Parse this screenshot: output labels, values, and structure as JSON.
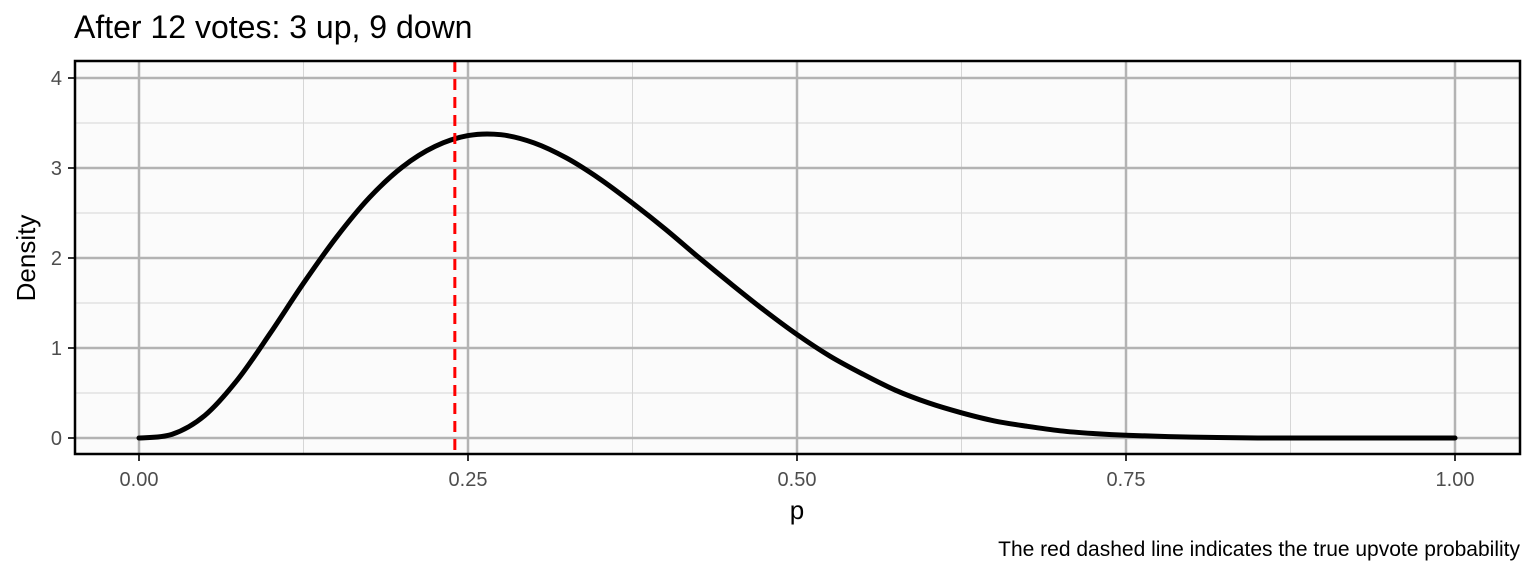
{
  "chart_data": {
    "type": "line",
    "title": "After 12 votes: 3 up, 9 down",
    "xlabel": "p",
    "ylabel": "Density",
    "caption": "The red dashed line indicates the true upvote probability",
    "xlim": [
      0,
      1
    ],
    "ylim": [
      0,
      4
    ],
    "x_ticks": [
      {
        "value": 0,
        "label": "0.00"
      },
      {
        "value": 0.25,
        "label": "0.25"
      },
      {
        "value": 0.5,
        "label": "0.50"
      },
      {
        "value": 0.75,
        "label": "0.75"
      },
      {
        "value": 1,
        "label": "1.00"
      }
    ],
    "y_ticks": [
      {
        "value": 0,
        "label": "0"
      },
      {
        "value": 1,
        "label": "1"
      },
      {
        "value": 2,
        "label": "2"
      },
      {
        "value": 3,
        "label": "3"
      },
      {
        "value": 4,
        "label": "4"
      }
    ],
    "grid": true,
    "series": [
      {
        "distribution": "Beta(4, 10)",
        "color": "#000000",
        "x": [
          0,
          0.025,
          0.05,
          0.075,
          0.1,
          0.125,
          0.15,
          0.175,
          0.2,
          0.225,
          0.25,
          0.275,
          0.3,
          0.325,
          0.35,
          0.375,
          0.4,
          0.425,
          0.45,
          0.475,
          0.5,
          0.525,
          0.55,
          0.575,
          0.6,
          0.625,
          0.65,
          0.675,
          0.7,
          0.725,
          0.75,
          0.8,
          0.85,
          0.9,
          0.95,
          1
        ],
        "y": [
          0,
          0.04,
          0.25,
          0.65,
          1.17,
          1.72,
          2.23,
          2.67,
          3.01,
          3.24,
          3.36,
          3.37,
          3.28,
          3.11,
          2.88,
          2.61,
          2.32,
          2.01,
          1.71,
          1.42,
          1.15,
          0.91,
          0.71,
          0.53,
          0.39,
          0.28,
          0.19,
          0.13,
          0.08,
          0.05,
          0.03,
          0.01,
          0,
          0,
          0,
          0
        ]
      }
    ],
    "reference_line": {
      "x": 0.24,
      "color": "#ff0000",
      "style": "dashed"
    }
  }
}
